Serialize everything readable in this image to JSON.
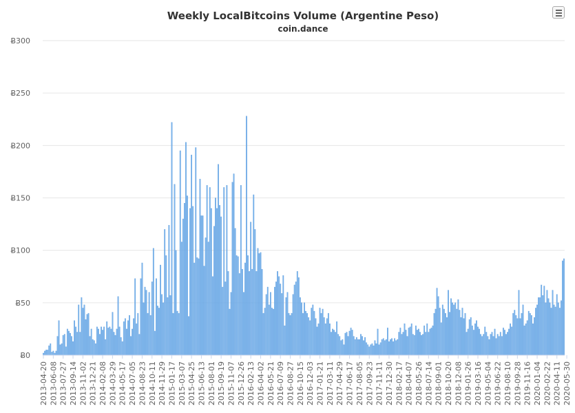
{
  "chart_data": {
    "type": "bar",
    "title": "Weekly LocalBitcoins Volume (Argentine Peso)",
    "subtitle": "coin.dance",
    "y_ticks": [
      "Ƀ0",
      "Ƀ50",
      "Ƀ100",
      "Ƀ150",
      "Ƀ200",
      "Ƀ250",
      "Ƀ300"
    ],
    "y_tick_values": [
      0,
      50,
      100,
      150,
      200,
      250,
      300
    ],
    "ylim": [
      0,
      300
    ],
    "grid": true,
    "legend": "none",
    "bar_color": "#7cb5ec",
    "bar_edge_color": "#4a90d9",
    "x_tick_labels": [
      "2013-04-20",
      "2013-06-08",
      "2013-07-27",
      "2013-09-14",
      "2013-11-02",
      "2013-12-21",
      "2014-02-08",
      "2014-03-29",
      "2014-05-17",
      "2014-07-05",
      "2014-08-23",
      "2014-10-11",
      "2014-11-29",
      "2015-01-17",
      "2015-03-07",
      "2015-04-25",
      "2015-06-13",
      "2015-08-01",
      "2015-09-19",
      "2015-11-07",
      "2015-12-26",
      "2016-02-13",
      "2016-04-02",
      "2016-05-21",
      "2016-07-09",
      "2016-08-27",
      "2016-10-15",
      "2016-12-03",
      "2017-01-21",
      "2017-03-11",
      "2017-04-29",
      "2017-06-17",
      "2017-08-05",
      "2017-09-23",
      "2017-11-11",
      "2017-12-30",
      "2018-02-17",
      "2018-04-07",
      "2018-05-26",
      "2018-07-14",
      "2018-09-01",
      "2018-10-20",
      "2018-12-08",
      "2019-01-26",
      "2019-03-16",
      "2019-05-04",
      "2019-06-22",
      "2019-08-10",
      "2019-09-28",
      "2019-11-16",
      "2020-01-04",
      "2020-02-22",
      "2020-04-11",
      "2020-05-30"
    ],
    "tick_every_n_weeks": 7,
    "x_start": "2013-04-20",
    "values": [
      2,
      4,
      5,
      5,
      9,
      11,
      3,
      4,
      2,
      4,
      18,
      33,
      10,
      11,
      19,
      20,
      8,
      25,
      23,
      21,
      18,
      13,
      33,
      27,
      22,
      48,
      22,
      55,
      45,
      48,
      34,
      39,
      40,
      18,
      25,
      15,
      14,
      11,
      27,
      25,
      20,
      27,
      24,
      27,
      15,
      32,
      26,
      27,
      25,
      41,
      22,
      19,
      25,
      56,
      27,
      17,
      13,
      32,
      35,
      25,
      33,
      38,
      18,
      25,
      35,
      73,
      30,
      40,
      20,
      73,
      88,
      50,
      65,
      62,
      40,
      60,
      38,
      70,
      102,
      23,
      73,
      47,
      45,
      86,
      58,
      50,
      120,
      95,
      55,
      124,
      57,
      222,
      40,
      163,
      100,
      42,
      40,
      195,
      108,
      130,
      145,
      203,
      152,
      37,
      140,
      191,
      142,
      88,
      198,
      93,
      92,
      168,
      133,
      133,
      85,
      112,
      162,
      108,
      160,
      140,
      75,
      123,
      150,
      140,
      182,
      143,
      132,
      65,
      160,
      70,
      162,
      80,
      44,
      60,
      165,
      173,
      121,
      95,
      94,
      78,
      162,
      82,
      60,
      88,
      228,
      95,
      80,
      127,
      82,
      153,
      120,
      80,
      102,
      97,
      98,
      82,
      40,
      45,
      58,
      65,
      48,
      60,
      45,
      44,
      65,
      70,
      80,
      75,
      68,
      59,
      76,
      28,
      55,
      60,
      40,
      38,
      40,
      58,
      67,
      70,
      80,
      74,
      55,
      50,
      40,
      50,
      42,
      40,
      36,
      33,
      45,
      48,
      42,
      35,
      27,
      30,
      45,
      40,
      44,
      36,
      30,
      35,
      40,
      30,
      22,
      25,
      24,
      22,
      32,
      20,
      18,
      14,
      15,
      10,
      21,
      22,
      18,
      23,
      26,
      24,
      18,
      15,
      17,
      15,
      15,
      20,
      18,
      14,
      17,
      12,
      10,
      8,
      10,
      11,
      9,
      14,
      11,
      25,
      10,
      12,
      15,
      16,
      14,
      15,
      26,
      13,
      15,
      16,
      13,
      16,
      14,
      15,
      22,
      26,
      20,
      22,
      30,
      24,
      18,
      26,
      27,
      30,
      20,
      19,
      28,
      24,
      25,
      22,
      19,
      20,
      28,
      22,
      30,
      22,
      25,
      26,
      28,
      40,
      44,
      64,
      56,
      45,
      31,
      48,
      44,
      40,
      36,
      62,
      41,
      54,
      50,
      48,
      50,
      44,
      53,
      43,
      36,
      45,
      35,
      40,
      22,
      25,
      34,
      36,
      28,
      24,
      30,
      33,
      27,
      25,
      20,
      18,
      20,
      27,
      22,
      18,
      15,
      20,
      22,
      18,
      25,
      16,
      20,
      18,
      22,
      18,
      26,
      24,
      20,
      22,
      25,
      30,
      27,
      40,
      43,
      38,
      35,
      62,
      35,
      40,
      48,
      28,
      30,
      33,
      42,
      40,
      38,
      30,
      36,
      45,
      48,
      55,
      55,
      67,
      57,
      66,
      50,
      62,
      54,
      50,
      45,
      62,
      48,
      46,
      58,
      50,
      45,
      52,
      90,
      92
    ]
  },
  "ui": {
    "menu_icon": "hamburger-icon"
  }
}
